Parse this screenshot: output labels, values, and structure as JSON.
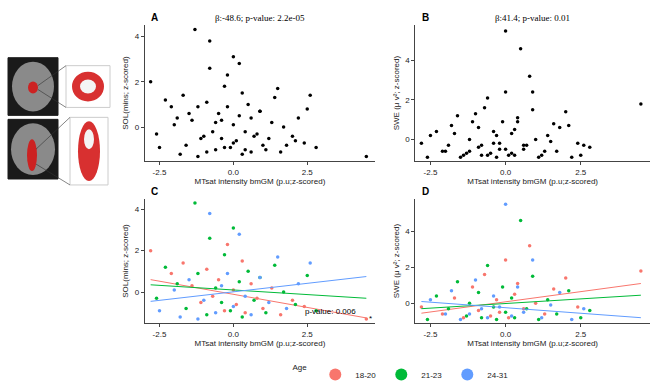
{
  "chart_data": [
    {
      "type": "scatter",
      "label": "A",
      "subtitle": "β:-48.6; p-value: 2.2e-05",
      "x_label": "MTsat intensity bmGM (p.u;z-scored)",
      "y_label": "SOL(mins; z-scored)",
      "color": "#000000",
      "x": [
        -2.8,
        -2.1,
        -1.7,
        -1.4,
        -1.1,
        -0.9,
        -0.7,
        -0.5,
        -0.3,
        -0.2,
        0.0,
        0.1,
        0.3,
        0.4,
        0.6,
        0.8,
        1.0,
        1.3,
        1.6,
        2.0,
        2.4,
        4.5,
        -2.6,
        -2.3,
        -1.9,
        -1.6,
        -1.3,
        -1.2,
        -0.9,
        -0.8,
        -0.6,
        -0.4,
        -0.3,
        -0.1,
        0.0,
        0.2,
        0.3,
        0.5,
        0.7,
        0.9,
        1.1,
        1.4,
        1.7,
        2.1,
        2.5,
        2.8,
        -2.5,
        -2.0,
        -1.8,
        -1.5,
        -1.0,
        -0.8,
        -0.6,
        -0.4,
        -0.2,
        0.0,
        0.2,
        0.4,
        0.6,
        0.9,
        1.2,
        1.5,
        1.8,
        2.2,
        2.6,
        -1.2
      ],
      "values": [
        2.0,
        0.9,
        1.4,
        0.3,
        -0.5,
        1.1,
        -0.2,
        0.6,
        -0.9,
        2.3,
        0.1,
        -0.6,
        1.5,
        -1.0,
        0.4,
        -0.3,
        -0.8,
        0.2,
        -1.1,
        -0.4,
        -0.7,
        -1.3,
        -0.3,
        1.2,
        0.4,
        -0.8,
        4.3,
        0.9,
        -1.1,
        2.6,
        0.2,
        -0.5,
        1.8,
        -0.9,
        3.1,
        0.5,
        -1.2,
        1.0,
        -0.4,
        0.7,
        -1.0,
        1.3,
        0.0,
        -0.6,
        0.8,
        -0.9,
        -0.9,
        0.1,
        -1.2,
        0.6,
        -0.4,
        3.8,
        -1.0,
        0.3,
        0.9,
        -0.7,
        2.8,
        -0.2,
        -1.1,
        0.7,
        -0.5,
        1.7,
        -0.8,
        0.4,
        1.4,
        -1.3
      ],
      "xlim": [
        -3.0,
        4.8
      ],
      "xticks": [
        -2.5,
        {
          "value": 0,
          "label": "0.0"
        },
        2.5
      ],
      "ylim": [
        -1.5,
        4.5
      ],
      "yticks": [
        0,
        2,
        4
      ]
    },
    {
      "type": "scatter",
      "label": "B",
      "subtitle": "β:41.4; p-value: 0.01",
      "x_label": "MTsat intensity bmGM (p.u;z-scored)",
      "y_label": "SWE (μ v²; z-scored)",
      "color": "#000000",
      "x": [
        -2.8,
        -2.1,
        -1.7,
        -1.4,
        -1.1,
        -0.9,
        -0.7,
        -0.5,
        -0.3,
        -0.2,
        0.0,
        0.1,
        0.3,
        0.4,
        0.6,
        0.8,
        1.0,
        1.3,
        1.6,
        2.0,
        2.4,
        4.5,
        -2.6,
        -2.3,
        -1.9,
        -1.6,
        -1.3,
        -1.2,
        -0.9,
        -0.8,
        -0.6,
        -0.4,
        -0.3,
        -0.1,
        0.0,
        0.2,
        0.3,
        0.5,
        0.7,
        0.9,
        1.1,
        1.4,
        1.7,
        2.1,
        2.5,
        2.8,
        -2.5,
        -2.0,
        -1.8,
        -1.5,
        -1.0,
        -0.8,
        -0.6,
        -0.4,
        -0.2,
        0.0,
        0.2,
        0.4,
        0.6,
        0.9,
        1.2,
        1.5,
        1.8,
        2.2,
        2.6,
        -1.2
      ],
      "values": [
        -0.2,
        -0.6,
        0.3,
        -0.8,
        0.9,
        -0.4,
        1.6,
        -0.7,
        0.2,
        -0.5,
        2.4,
        -0.8,
        0.5,
        1.1,
        -0.3,
        3.2,
        0.0,
        -0.6,
        0.8,
        1.4,
        -0.2,
        1.8,
        -0.9,
        0.4,
        -0.3,
        1.2,
        -0.7,
        0.0,
        0.6,
        -0.8,
        2.1,
        -0.2,
        -0.9,
        0.9,
        -0.5,
        0.3,
        -0.8,
        4.6,
        -0.3,
        1.5,
        -0.9,
        0.2,
        -0.6,
        0.7,
        -0.8,
        -0.4,
        0.2,
        -0.6,
        0.7,
        -0.9,
        1.3,
        -0.3,
        -0.8,
        0.4,
        -0.2,
        5.5,
        -0.7,
        0.9,
        -0.5,
        2.4,
        -0.8,
        -0.1,
        0.6,
        -0.9,
        -0.3,
        -0.6
      ],
      "xlim": [
        -3.0,
        4.8
      ],
      "xticks": [
        -2.5,
        {
          "value": 0,
          "label": "0.0"
        },
        2.5
      ],
      "ylim": [
        -1.1,
        5.8
      ],
      "yticks": [
        0,
        2,
        4
      ]
    },
    {
      "type": "scatter",
      "label": "C",
      "x_label": "MTsat intensity bmGM (p.u;z-scored)",
      "y_label": "SOL(mins; z-scored)",
      "legend": "bottom",
      "legend_title": "Age",
      "annotations": [
        {
          "text": "p-value: 0.006",
          "x": 3.3,
          "y": -0.95
        },
        {
          "text": "*",
          "x": 4.65,
          "y": -1.3
        }
      ],
      "series": [
        {
          "name": "18-20",
          "color": "#F8766D",
          "x": [
            -2.8,
            -2.1,
            -1.7,
            -1.4,
            -1.1,
            -0.9,
            -0.7,
            -0.5,
            -0.3,
            -0.2,
            0.0,
            0.1,
            0.3,
            0.4,
            0.6,
            0.8,
            1.0,
            1.3,
            1.6,
            2.0,
            2.4,
            4.5
          ],
          "values": [
            2.0,
            0.9,
            1.4,
            0.3,
            -0.5,
            1.1,
            -0.2,
            0.6,
            -0.9,
            2.3,
            0.1,
            -0.6,
            1.5,
            -1.0,
            0.4,
            -0.3,
            -0.8,
            0.2,
            -1.1,
            -0.4,
            -0.7,
            -1.3
          ],
          "fit": {
            "x": [
              -2.8,
              4.5
            ],
            "values": [
              0.6,
              -1.25
            ]
          }
        },
        {
          "name": "21-23",
          "color": "#00BA38",
          "x": [
            -2.6,
            -2.3,
            -1.9,
            -1.6,
            -1.3,
            -1.2,
            -0.9,
            -0.8,
            -0.6,
            -0.4,
            -0.3,
            -0.1,
            0.0,
            0.2,
            0.3,
            0.5,
            0.7,
            0.9,
            1.1,
            1.4,
            1.7,
            2.1,
            2.5,
            2.8
          ],
          "values": [
            -0.3,
            1.2,
            0.4,
            -0.8,
            4.3,
            0.9,
            -1.1,
            2.6,
            0.2,
            -0.5,
            1.8,
            -0.9,
            3.1,
            0.5,
            -1.2,
            1.0,
            -0.4,
            0.7,
            -1.0,
            1.3,
            0.0,
            -0.6,
            0.8,
            -0.9
          ],
          "fit": {
            "x": [
              -2.8,
              4.5
            ],
            "values": [
              0.35,
              -0.3
            ]
          }
        },
        {
          "name": "24-31",
          "color": "#619CFF",
          "x": [
            -2.5,
            -2.0,
            -1.8,
            -1.5,
            -1.0,
            -0.8,
            -0.6,
            -0.4,
            -0.2,
            0.0,
            0.2,
            0.4,
            0.6,
            0.9,
            1.2,
            1.5,
            1.8,
            2.2,
            2.6,
            -1.2
          ],
          "values": [
            -0.9,
            0.1,
            -1.2,
            0.6,
            -0.4,
            3.8,
            -1.0,
            0.3,
            0.9,
            -0.7,
            2.8,
            -0.2,
            -1.1,
            0.7,
            -0.5,
            1.7,
            -0.8,
            0.4,
            1.4,
            -1.3
          ],
          "fit": {
            "x": [
              -2.8,
              4.5
            ],
            "values": [
              -0.45,
              0.75
            ]
          }
        }
      ],
      "xlim": [
        -3.0,
        4.8
      ],
      "xticks": [
        -2.5,
        {
          "value": 0,
          "label": "0.0"
        },
        2.5
      ],
      "ylim": [
        -1.5,
        4.5
      ],
      "yticks": [
        0,
        2,
        4
      ]
    },
    {
      "type": "scatter",
      "label": "D",
      "x_label": "MTsat intensity bmGM (p.u;z-scored)",
      "y_label": "SWE (μ v²; z-scored)",
      "series": [
        {
          "name": "18-20",
          "color": "#F8766D",
          "x": [
            -2.8,
            -2.1,
            -1.7,
            -1.4,
            -1.1,
            -0.9,
            -0.7,
            -0.5,
            -0.3,
            -0.2,
            0.0,
            0.1,
            0.3,
            0.4,
            0.6,
            0.8,
            1.0,
            1.3,
            1.6,
            2.0,
            2.4,
            4.5
          ],
          "values": [
            -0.2,
            -0.6,
            0.3,
            -0.8,
            0.9,
            -0.4,
            1.6,
            -0.7,
            0.2,
            -0.5,
            2.4,
            -0.8,
            0.5,
            1.1,
            -0.3,
            3.2,
            0.0,
            -0.6,
            0.8,
            1.4,
            -0.2,
            1.8
          ],
          "fit": {
            "x": [
              -2.8,
              4.5
            ],
            "values": [
              -0.55,
              1.1
            ]
          }
        },
        {
          "name": "21-23",
          "color": "#00BA38",
          "x": [
            -2.6,
            -2.3,
            -1.9,
            -1.6,
            -1.3,
            -1.2,
            -0.9,
            -0.8,
            -0.6,
            -0.4,
            -0.3,
            -0.1,
            0.0,
            0.2,
            0.3,
            0.5,
            0.7,
            0.9,
            1.1,
            1.4,
            1.7,
            2.1,
            2.5,
            2.8
          ],
          "values": [
            -0.9,
            0.4,
            -0.3,
            1.2,
            -0.7,
            0.0,
            0.6,
            -0.8,
            2.1,
            -0.2,
            -0.9,
            0.9,
            -0.5,
            0.3,
            -0.8,
            4.6,
            -0.3,
            1.5,
            -0.9,
            0.2,
            -0.6,
            0.7,
            -0.8,
            -0.4
          ],
          "fit": {
            "x": [
              -2.8,
              4.5
            ],
            "values": [
              -0.3,
              0.45
            ]
          }
        },
        {
          "name": "24-31",
          "color": "#619CFF",
          "x": [
            -2.5,
            -2.0,
            -1.8,
            -1.5,
            -1.0,
            -0.8,
            -0.6,
            -0.4,
            -0.2,
            0.0,
            0.2,
            0.4,
            0.6,
            0.9,
            1.2,
            1.5,
            1.8,
            2.2,
            2.6,
            -1.2
          ],
          "values": [
            0.2,
            -0.6,
            0.7,
            -0.9,
            1.3,
            -0.3,
            -0.8,
            0.4,
            -0.2,
            5.5,
            -0.7,
            0.9,
            -0.5,
            2.4,
            -0.8,
            -0.1,
            0.6,
            -0.9,
            -0.3,
            -0.6
          ],
          "fit": {
            "x": [
              -2.8,
              4.5
            ],
            "values": [
              0.1,
              -0.8
            ]
          }
        }
      ],
      "xlim": [
        -3.0,
        4.8
      ],
      "xticks": [
        -2.5,
        {
          "value": 0,
          "label": "0.0"
        },
        2.5
      ],
      "ylim": [
        -1.1,
        5.8
      ],
      "yticks": [
        0,
        2,
        4
      ]
    }
  ]
}
